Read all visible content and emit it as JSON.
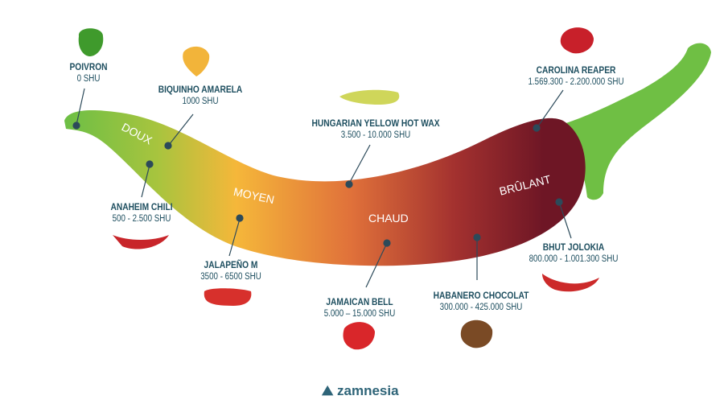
{
  "zones": [
    "DOUX",
    "MOYEN",
    "CHAUD",
    "BRÛLANT"
  ],
  "peppers": [
    {
      "name": "POIVRON",
      "shu": "0 SHU"
    },
    {
      "name": "BIQUINHO AMARELA",
      "shu": "1000 SHU"
    },
    {
      "name": "ANAHEIM CHILI",
      "shu": "500 - 2.500 SHU"
    },
    {
      "name": "JALAPEÑO M",
      "shu": "3500 - 6500 SHU"
    },
    {
      "name": "HUNGARIAN YELLOW HOT WAX",
      "shu": "3.500 - 10.000 SHU"
    },
    {
      "name": "JAMAICAN BELL",
      "shu": "5.000 – 15.000 SHU"
    },
    {
      "name": "HABANERO CHOCOLAT",
      "shu": "300.000 - 425.000 SHU"
    },
    {
      "name": "CAROLINA REAPER",
      "shu": "1.569.300 - 2.200.000 SHU"
    },
    {
      "name": "BHUT JOLOKIA",
      "shu": "800.000 - 1.001.300 SHU"
    }
  ],
  "logo": "zamnesia",
  "colors": {
    "text": "#1d4e5f",
    "green": "#7dc242",
    "yellow": "#f5b73a",
    "orange": "#e2733a",
    "dark_red": "#7a1a28"
  }
}
